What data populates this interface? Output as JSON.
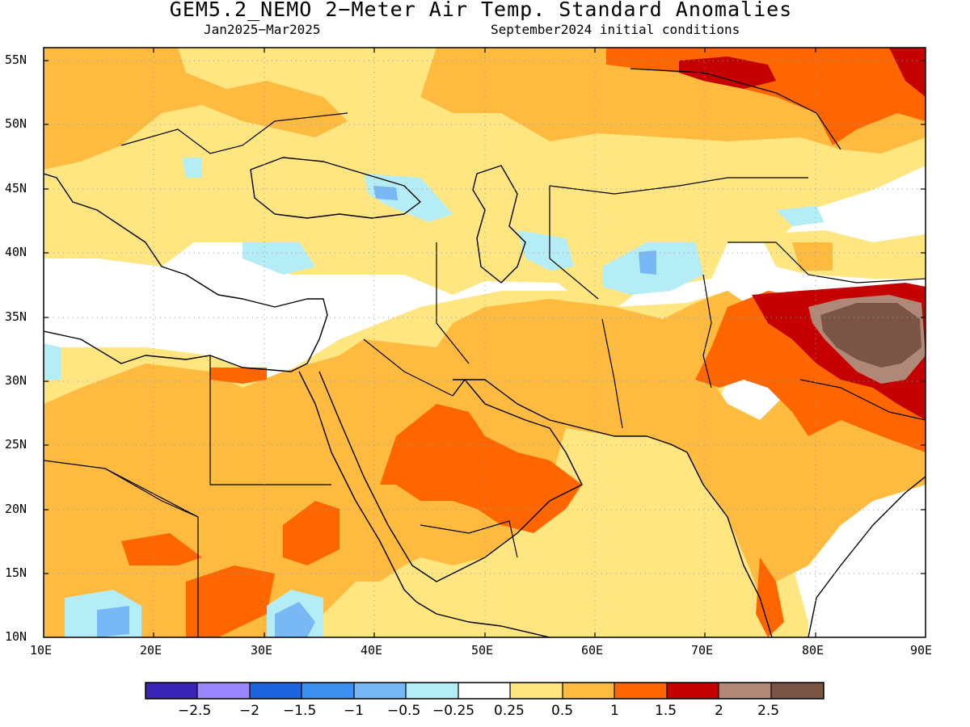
{
  "header": {
    "title": "GEM5.2_NEMO 2−Meter Air Temp. Standard Anomalies",
    "period": "Jan2025−Mar2025",
    "initial_conditions": "September2024 initial conditions"
  },
  "axes": {
    "lat_labels": [
      "55N",
      "50N",
      "45N",
      "40N",
      "35N",
      "30N",
      "25N",
      "20N",
      "15N",
      "10N"
    ],
    "lon_labels": [
      "10E",
      "20E",
      "30E",
      "40E",
      "50E",
      "60E",
      "70E",
      "80E",
      "90E"
    ],
    "lat_range": [
      10,
      56
    ],
    "lon_range": [
      10,
      90
    ],
    "grid": "dotted"
  },
  "colorbar": {
    "colors": [
      "#3a24b8",
      "#9a86ff",
      "#1f64df",
      "#3d8ff0",
      "#78b8f5",
      "#b4edf5",
      "#ffffff",
      "#ffe680",
      "#ffba40",
      "#ff6600",
      "#c40000",
      "#b08878",
      "#7a5445"
    ],
    "labels": [
      "−2.5",
      "−2",
      "−1.5",
      "−1",
      "−0.5",
      "−0.25",
      "0.25",
      "0.5",
      "1",
      "1.5",
      "2",
      "2.5"
    ]
  },
  "map": {
    "type": "heatmap",
    "variable": "2-meter air temperature standard anomaly",
    "background_color": "#ffffff",
    "notable_regions": [
      {
        "class": "2.5",
        "color": "#7a5445",
        "center_lon": 85,
        "center_lat": 34
      },
      {
        "class": "2",
        "color": "#b08878",
        "center_lon": 84,
        "center_lat": 33
      },
      {
        "class": "1.5",
        "color": "#c40000",
        "center_lon": 86,
        "center_lat": 53
      }
    ]
  }
}
